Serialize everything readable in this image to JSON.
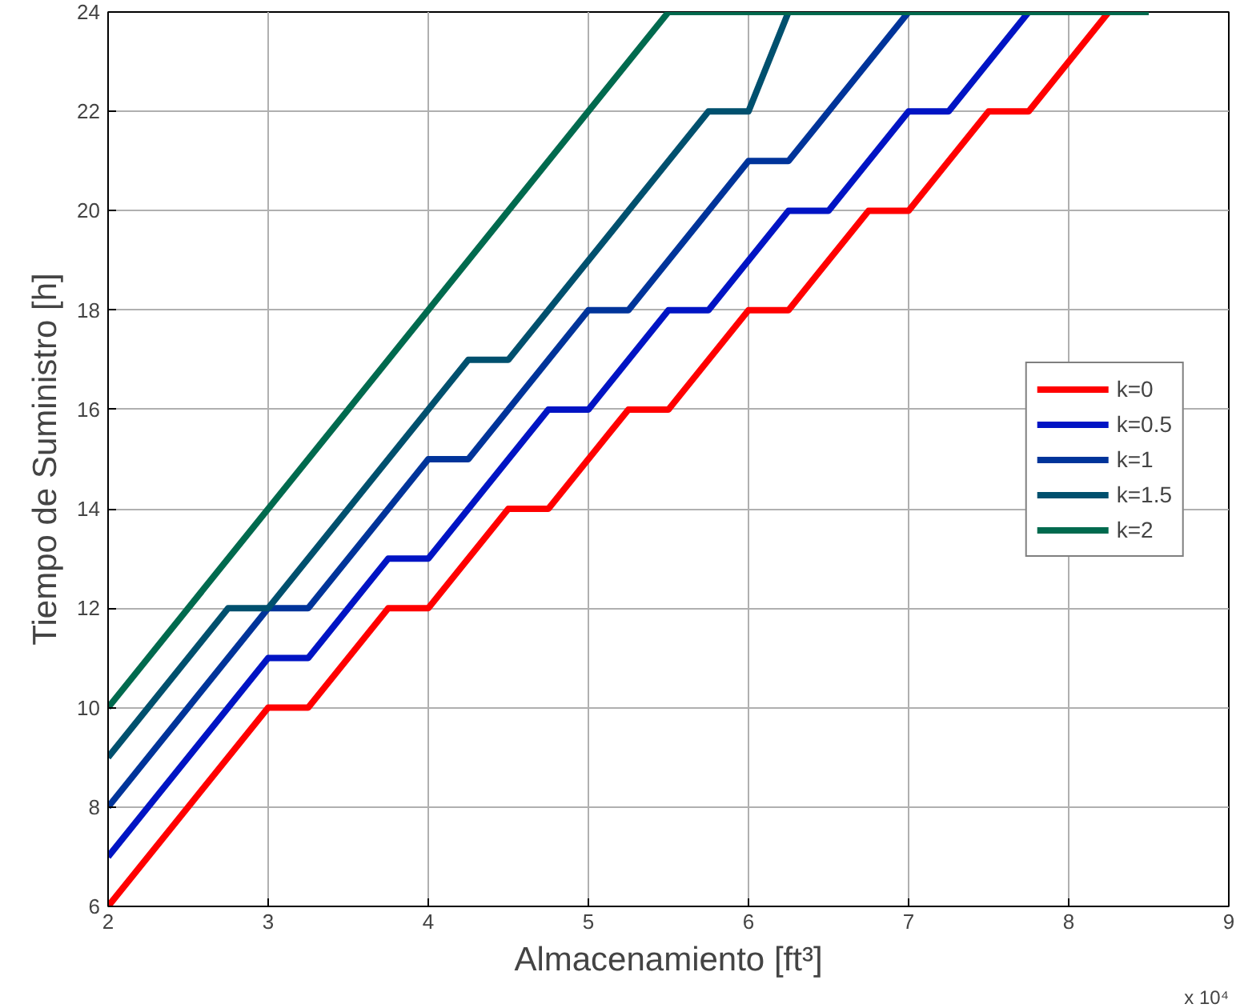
{
  "chart_data": {
    "type": "line",
    "xlabel": "Almacenamiento [ft³]",
    "ylabel": "Tiempo de Suministro [h]",
    "annotations": [
      "x 10⁴"
    ],
    "xlim": [
      2,
      9
    ],
    "ylim": [
      6,
      24
    ],
    "xticks": [
      2,
      3,
      4,
      5,
      6,
      7,
      8,
      9
    ],
    "yticks": [
      6,
      8,
      10,
      12,
      14,
      16,
      18,
      20,
      22,
      24
    ],
    "grid": true,
    "legend": "right",
    "marker": "none",
    "line_style": "solid",
    "series": [
      {
        "name": "k=0",
        "color": "#ff0000",
        "x": [
          2,
          3,
          3.25,
          3.75,
          4,
          4.5,
          4.75,
          5.25,
          5.5,
          6,
          6.25,
          6.75,
          7,
          7.5,
          7.75,
          8.25
        ],
        "values": [
          6,
          10,
          10,
          12,
          12,
          14,
          14,
          16,
          16,
          18,
          18,
          20,
          20,
          22,
          22,
          24
        ]
      },
      {
        "name": "k=0.5",
        "color": "#0014c4",
        "x": [
          2,
          3,
          3.25,
          3.75,
          4,
          4.75,
          5,
          5.5,
          5.75,
          6.25,
          6.5,
          7,
          7.25,
          7.75
        ],
        "values": [
          7,
          11,
          11,
          13,
          13,
          16,
          16,
          18,
          18,
          20,
          20,
          22,
          22,
          24
        ]
      },
      {
        "name": "k=1",
        "color": "#00349a",
        "x": [
          2,
          3,
          3.25,
          4,
          4.25,
          5,
          5.25,
          6,
          6.25,
          7
        ],
        "values": [
          8,
          12,
          12,
          15,
          15,
          18,
          18,
          21,
          21,
          24
        ]
      },
      {
        "name": "k=1.5",
        "color": "#00506e",
        "x": [
          2,
          2.75,
          3,
          4.25,
          4.5,
          5.75,
          6,
          6.25
        ],
        "values": [
          9,
          12,
          12,
          17,
          17,
          22,
          22,
          24
        ]
      },
      {
        "name": "k=2",
        "color": "#006a4e",
        "x": [
          2,
          5.5,
          8.5
        ],
        "values": [
          10,
          24,
          24
        ]
      }
    ]
  }
}
